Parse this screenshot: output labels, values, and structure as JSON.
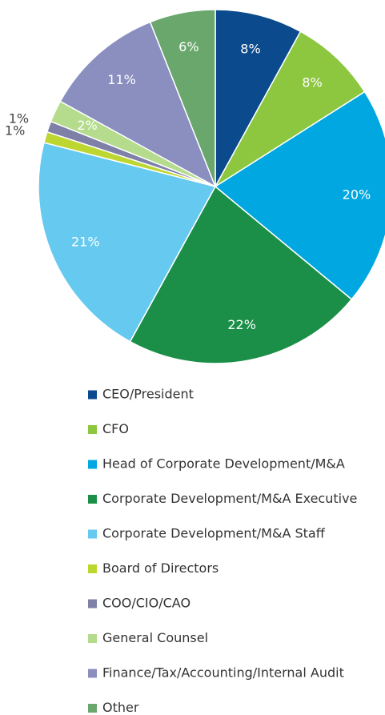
{
  "chart_data": {
    "type": "pie",
    "categories": [
      "CEO/President",
      "CFO",
      "Head of Corporate Development/M&A",
      "Corporate Development/M&A Executive",
      "Corporate Development/M&A Staff",
      "Board of Directors",
      "COO/CIO/CAO",
      "General Counsel",
      "Finance/Tax/Accounting/Internal Audit",
      "Other"
    ],
    "values": [
      8,
      8,
      20,
      22,
      21,
      1,
      1,
      2,
      11,
      6
    ],
    "value_labels": [
      "8%",
      "8%",
      "20%",
      "22%",
      "21%",
      "1%",
      "1%",
      "2%",
      "11%",
      "6%"
    ],
    "colors": [
      "#0b4a8c",
      "#8dc63f",
      "#00a7e1",
      "#1b8f47",
      "#66c9ef",
      "#bed630",
      "#7f80a8",
      "#b4dc8c",
      "#8a8fc0",
      "#6aa76c"
    ]
  }
}
